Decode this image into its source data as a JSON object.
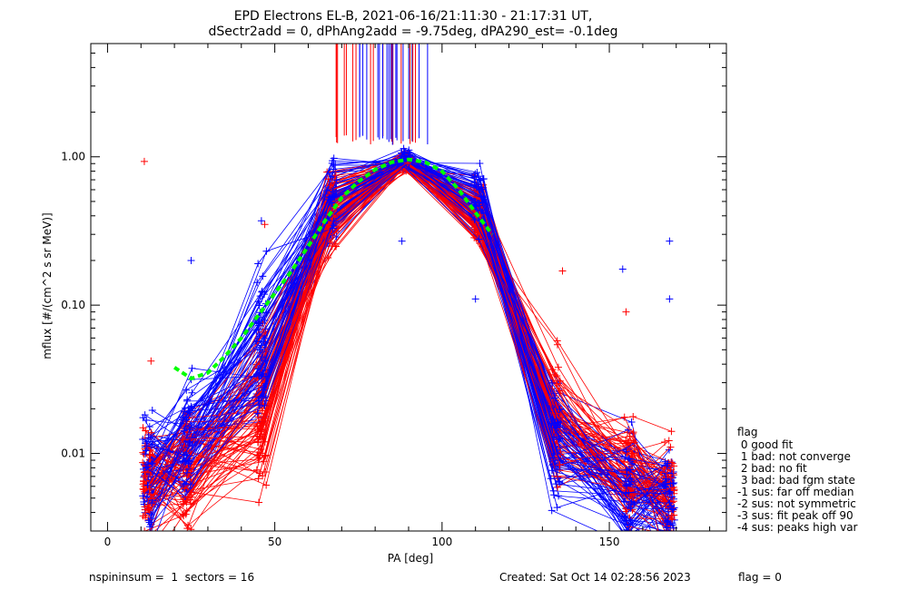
{
  "chart_data": {
    "type": "scatter",
    "title": "EPD Electrons EL-B, 2021-06-16/21:11:30 - 21:17:31 UT,",
    "subtitle": "dSectr2add = 0, dPhAng2add = -9.75deg, dPA290_est=  -0.1deg",
    "xlabel": "PA [deg]",
    "ylabel": "mflux [#/(cm^2 s sr MeV)]",
    "xlim": [
      -5,
      185
    ],
    "ylim": [
      0.003,
      5.8
    ],
    "y_scale": "log",
    "x_ticks": [
      "0",
      "50",
      "100",
      "150"
    ],
    "x_tick_values": [
      0,
      50,
      100,
      150
    ],
    "y_ticks": [
      "0.01",
      "0.10",
      "1.00"
    ],
    "y_tick_values": [
      0.01,
      0.1,
      1.0
    ],
    "pa_bins": [
      12,
      24,
      46,
      67,
      89,
      111,
      134,
      156,
      168
    ],
    "series": [
      {
        "color": "#ff0000",
        "median": [
          0.006,
          0.008,
          0.02,
          0.4,
          0.93,
          0.4,
          0.018,
          0.007,
          0.005
        ],
        "outliers": [
          {
            "x": 11,
            "y": 0.93
          },
          {
            "x": 13,
            "y": 0.042
          },
          {
            "x": 47,
            "y": 0.35
          },
          {
            "x": 136,
            "y": 0.17
          },
          {
            "x": 155,
            "y": 0.09
          }
        ]
      },
      {
        "color": "#0000ff",
        "median": [
          0.006,
          0.012,
          0.05,
          0.5,
          0.95,
          0.5,
          0.012,
          0.006,
          0.005
        ],
        "outliers": [
          {
            "x": 25,
            "y": 0.2
          },
          {
            "x": 46,
            "y": 0.37
          },
          {
            "x": 88,
            "y": 0.27
          },
          {
            "x": 110,
            "y": 0.11
          },
          {
            "x": 154,
            "y": 0.175
          },
          {
            "x": 168,
            "y": 0.27
          },
          {
            "x": 168,
            "y": 0.11
          }
        ]
      }
    ],
    "fit_curve": {
      "color": "#00ff00",
      "x": [
        20,
        25,
        30,
        35,
        40,
        45,
        50,
        55,
        60,
        65,
        70,
        75,
        80,
        85,
        90,
        95,
        100,
        105,
        110,
        115
      ],
      "y": [
        0.038,
        0.032,
        0.035,
        0.045,
        0.06,
        0.085,
        0.12,
        0.17,
        0.25,
        0.37,
        0.53,
        0.68,
        0.82,
        0.92,
        0.96,
        0.92,
        0.8,
        0.6,
        0.42,
        0.3
      ]
    },
    "legend": {
      "title": "flag",
      "entries": [
        " 0 good fit",
        " 1 bad: not converge",
        " 2 bad: no fit",
        " 3 bad: bad fgm state",
        "-1 sus: far off median",
        "-2 sus: not symmetric",
        "-3 sus: fit peak off 90",
        "-4 sus: peaks high var"
      ],
      "placement": "right-outside"
    },
    "grid": false
  },
  "footer": {
    "left": "nspininsum =  1  sectors = 16",
    "center": "Created: Sat Oct 14 02:28:56 2023",
    "right": "flag = 0"
  }
}
